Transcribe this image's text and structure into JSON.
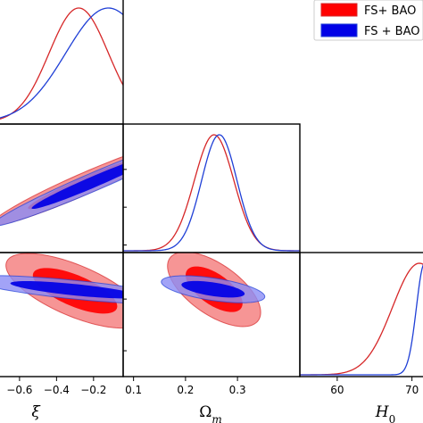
{
  "chart_data": {
    "type": "corner",
    "parameters": [
      {
        "name": "xi",
        "label": "ξ",
        "range": [
          -0.72,
          -0.04
        ],
        "ticks": [
          -0.6,
          -0.4,
          -0.2
        ],
        "tick_labels": [
          "−0.6",
          "−0.4",
          "−0.2"
        ]
      },
      {
        "name": "Om",
        "label": "Ωm",
        "range": [
          0.08,
          0.42
        ],
        "ticks": [
          0.1,
          0.2,
          0.3
        ],
        "tick_labels": [
          "0.1",
          "0.2",
          "0.3"
        ]
      },
      {
        "name": "H0",
        "label": "H0",
        "label_main": "H",
        "label_sub": "0",
        "range": [
          55,
          79
        ],
        "ticks": [
          60,
          70
        ],
        "tick_labels": [
          "60",
          "70"
        ]
      }
    ],
    "series": [
      {
        "name": "FS+ BAO",
        "color": "#d62728",
        "fill_inner": "#ff0000",
        "fill_outer": "#f47a7a",
        "marginals": {
          "xi": {
            "mean": -0.28,
            "sigma": 0.16
          },
          "Om": {
            "mean": 0.255,
            "sigma": 0.038
          },
          "H0": {
            "mean": 71.0,
            "sigma": 3.6
          }
        },
        "contours": [
          {
            "x": "xi",
            "y": "Om",
            "cx": -0.25,
            "cy": 0.262,
            "sx": 0.2,
            "sy": 0.044,
            "rho": 0.96
          },
          {
            "x": "xi",
            "y": "H0",
            "cx": -0.3,
            "cy": 71.6,
            "sx": 0.15,
            "sy": 2.9,
            "rho": -0.68
          },
          {
            "x": "Om",
            "y": "H0",
            "cx": 0.255,
            "cy": 71.9,
            "sx": 0.036,
            "sy": 2.9,
            "rho": -0.62
          }
        ]
      },
      {
        "name": "FS + BAO",
        "color": "#1f3fd6",
        "fill_inner": "#0000e6",
        "fill_outer": "#8b8cf5",
        "marginals": {
          "xi": {
            "mean": -0.12,
            "sigma": 0.23
          },
          "Om": {
            "mean": 0.265,
            "sigma": 0.034
          },
          "H0": {
            "mean": 71.7,
            "sigma": 1.1
          }
        },
        "contours": [
          {
            "x": "xi",
            "y": "Om",
            "cx": -0.2,
            "cy": 0.267,
            "sx": 0.22,
            "sy": 0.047,
            "rho": 0.975
          },
          {
            "x": "xi",
            "y": "H0",
            "cx": -0.3,
            "cy": 71.8,
            "sx": 0.23,
            "sy": 1.1,
            "rho": -0.75
          },
          {
            "x": "Om",
            "y": "H0",
            "cx": 0.253,
            "cy": 71.9,
            "sx": 0.04,
            "sy": 1.05,
            "rho": -0.55
          }
        ]
      }
    ],
    "legend": {
      "position": "top-right",
      "entries": [
        "FS+ BAO",
        "FS + BAO"
      ]
    },
    "grid": false
  }
}
